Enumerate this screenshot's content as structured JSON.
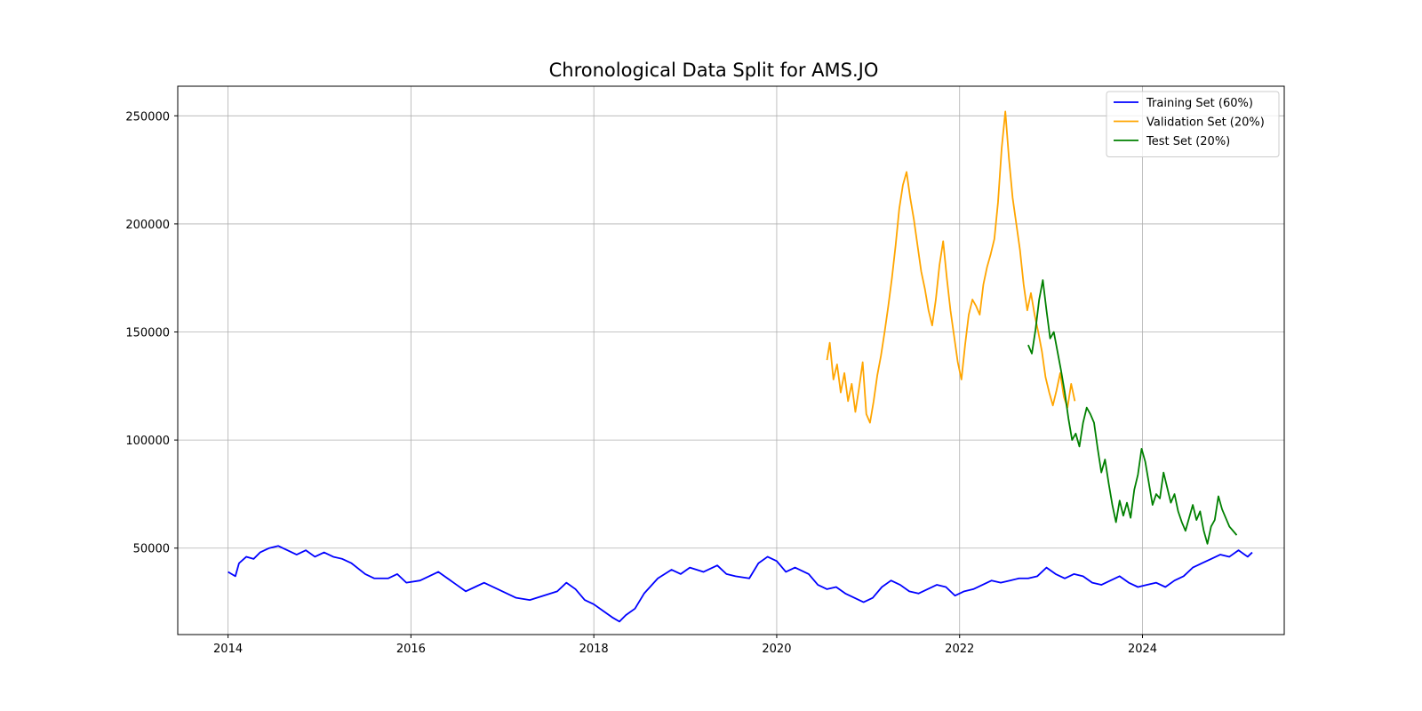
{
  "chart_data": {
    "type": "line",
    "title": "Chronological Data Split for AMS.JO",
    "xlabel": "",
    "ylabel": "",
    "xlim": [
      2013.45,
      2025.55
    ],
    "ylim": [
      10000,
      263700
    ],
    "x_ticks": [
      2014,
      2016,
      2018,
      2020,
      2022,
      2024
    ],
    "x_tick_labels": [
      "2014",
      "2016",
      "2018",
      "2020",
      "2022",
      "2024"
    ],
    "y_ticks": [
      50000,
      100000,
      150000,
      200000,
      250000
    ],
    "y_tick_labels": [
      "50000",
      "100000",
      "150000",
      "200000",
      "250000"
    ],
    "grid": true,
    "legend_position": "upper right",
    "series": [
      {
        "name": "Training Set (60%)",
        "color": "#0000ff",
        "points": [
          [
            2014.0,
            39000
          ],
          [
            2014.08,
            37000
          ],
          [
            2014.12,
            43000
          ],
          [
            2014.2,
            46000
          ],
          [
            2014.28,
            45000
          ],
          [
            2014.35,
            48000
          ],
          [
            2014.45,
            50000
          ],
          [
            2014.55,
            51000
          ],
          [
            2014.65,
            49000
          ],
          [
            2014.75,
            47000
          ],
          [
            2014.85,
            49000
          ],
          [
            2014.95,
            46000
          ],
          [
            2015.05,
            48000
          ],
          [
            2015.15,
            46000
          ],
          [
            2015.25,
            45000
          ],
          [
            2015.35,
            43000
          ],
          [
            2015.5,
            38000
          ],
          [
            2015.6,
            36000
          ],
          [
            2015.75,
            36000
          ],
          [
            2015.85,
            38000
          ],
          [
            2015.95,
            34000
          ],
          [
            2016.1,
            35000
          ],
          [
            2016.2,
            37000
          ],
          [
            2016.3,
            39000
          ],
          [
            2016.4,
            36000
          ],
          [
            2016.5,
            33000
          ],
          [
            2016.6,
            30000
          ],
          [
            2016.7,
            32000
          ],
          [
            2016.8,
            34000
          ],
          [
            2016.95,
            31000
          ],
          [
            2017.05,
            29000
          ],
          [
            2017.15,
            27000
          ],
          [
            2017.3,
            26000
          ],
          [
            2017.45,
            28000
          ],
          [
            2017.6,
            30000
          ],
          [
            2017.7,
            34000
          ],
          [
            2017.8,
            31000
          ],
          [
            2017.9,
            26000
          ],
          [
            2018.0,
            24000
          ],
          [
            2018.1,
            21000
          ],
          [
            2018.2,
            18000
          ],
          [
            2018.28,
            16000
          ],
          [
            2018.35,
            19000
          ],
          [
            2018.45,
            22000
          ],
          [
            2018.55,
            29000
          ],
          [
            2018.7,
            36000
          ],
          [
            2018.85,
            40000
          ],
          [
            2018.95,
            38000
          ],
          [
            2019.05,
            41000
          ],
          [
            2019.2,
            39000
          ],
          [
            2019.35,
            42000
          ],
          [
            2019.45,
            38000
          ],
          [
            2019.55,
            37000
          ],
          [
            2019.7,
            36000
          ],
          [
            2019.8,
            43000
          ],
          [
            2019.9,
            46000
          ],
          [
            2020.0,
            44000
          ],
          [
            2020.1,
            39000
          ],
          [
            2020.2,
            41000
          ],
          [
            2020.35,
            38000
          ],
          [
            2020.45,
            33000
          ],
          [
            2020.55,
            31000
          ],
          [
            2020.65,
            32000
          ],
          [
            2020.75,
            29000
          ],
          [
            2020.85,
            27000
          ],
          [
            2020.95,
            25000
          ],
          [
            2021.05,
            27000
          ],
          [
            2021.15,
            32000
          ],
          [
            2021.25,
            35000
          ],
          [
            2021.35,
            33000
          ],
          [
            2021.45,
            30000
          ],
          [
            2021.55,
            29000
          ],
          [
            2021.65,
            31000
          ],
          [
            2021.75,
            33000
          ],
          [
            2021.85,
            32000
          ],
          [
            2021.95,
            28000
          ],
          [
            2022.05,
            30000
          ],
          [
            2022.15,
            31000
          ],
          [
            2022.25,
            33000
          ],
          [
            2022.35,
            35000
          ],
          [
            2022.45,
            34000
          ],
          [
            2022.55,
            35000
          ],
          [
            2022.65,
            36000
          ],
          [
            2022.75,
            36000
          ],
          [
            2022.85,
            37000
          ],
          [
            2022.95,
            41000
          ],
          [
            2023.05,
            38000
          ],
          [
            2023.15,
            36000
          ],
          [
            2023.25,
            38000
          ],
          [
            2023.35,
            37000
          ],
          [
            2023.45,
            34000
          ],
          [
            2023.55,
            33000
          ],
          [
            2023.65,
            35000
          ],
          [
            2023.75,
            37000
          ],
          [
            2023.85,
            34000
          ],
          [
            2023.95,
            32000
          ],
          [
            2024.05,
            33000
          ],
          [
            2024.15,
            34000
          ],
          [
            2024.25,
            32000
          ],
          [
            2024.35,
            35000
          ],
          [
            2024.45,
            37000
          ],
          [
            2024.55,
            41000
          ],
          [
            2024.65,
            43000
          ],
          [
            2024.75,
            45000
          ],
          [
            2024.85,
            47000
          ],
          [
            2024.95,
            46000
          ],
          [
            2025.05,
            49000
          ],
          [
            2025.15,
            46000
          ],
          [
            2025.2,
            48000
          ]
        ]
      },
      {
        "name": "Validation Set (20%)",
        "color": "#ffa500",
        "points": [
          [
            2020.55,
            137000
          ],
          [
            2020.58,
            145000
          ],
          [
            2020.62,
            128000
          ],
          [
            2020.66,
            135000
          ],
          [
            2020.7,
            122000
          ],
          [
            2020.74,
            131000
          ],
          [
            2020.78,
            118000
          ],
          [
            2020.82,
            126000
          ],
          [
            2020.86,
            113000
          ],
          [
            2020.9,
            124000
          ],
          [
            2020.94,
            136000
          ],
          [
            2020.98,
            112000
          ],
          [
            2021.02,
            108000
          ],
          [
            2021.06,
            118000
          ],
          [
            2021.1,
            130000
          ],
          [
            2021.14,
            139000
          ],
          [
            2021.18,
            150000
          ],
          [
            2021.22,
            162000
          ],
          [
            2021.26,
            175000
          ],
          [
            2021.3,
            190000
          ],
          [
            2021.34,
            207000
          ],
          [
            2021.38,
            218000
          ],
          [
            2021.42,
            224000
          ],
          [
            2021.46,
            212000
          ],
          [
            2021.5,
            202000
          ],
          [
            2021.54,
            190000
          ],
          [
            2021.58,
            178000
          ],
          [
            2021.62,
            170000
          ],
          [
            2021.66,
            160000
          ],
          [
            2021.7,
            153000
          ],
          [
            2021.74,
            165000
          ],
          [
            2021.78,
            181000
          ],
          [
            2021.82,
            192000
          ],
          [
            2021.86,
            175000
          ],
          [
            2021.9,
            160000
          ],
          [
            2021.94,
            148000
          ],
          [
            2021.98,
            136000
          ],
          [
            2022.02,
            128000
          ],
          [
            2022.06,
            144000
          ],
          [
            2022.1,
            158000
          ],
          [
            2022.14,
            165000
          ],
          [
            2022.18,
            162000
          ],
          [
            2022.22,
            158000
          ],
          [
            2022.26,
            172000
          ],
          [
            2022.3,
            180000
          ],
          [
            2022.34,
            186000
          ],
          [
            2022.38,
            193000
          ],
          [
            2022.42,
            210000
          ],
          [
            2022.46,
            235000
          ],
          [
            2022.5,
            252000
          ],
          [
            2022.54,
            230000
          ],
          [
            2022.58,
            212000
          ],
          [
            2022.62,
            200000
          ],
          [
            2022.66,
            188000
          ],
          [
            2022.7,
            172000
          ],
          [
            2022.74,
            160000
          ],
          [
            2022.78,
            168000
          ],
          [
            2022.82,
            158000
          ],
          [
            2022.86,
            150000
          ],
          [
            2022.9,
            141000
          ],
          [
            2022.94,
            129000
          ],
          [
            2022.98,
            122000
          ],
          [
            2023.02,
            116000
          ],
          [
            2023.06,
            123000
          ],
          [
            2023.1,
            131000
          ],
          [
            2023.14,
            120000
          ],
          [
            2023.18,
            115000
          ],
          [
            2023.22,
            126000
          ],
          [
            2023.26,
            118000
          ]
        ]
      },
      {
        "name": "Test Set (20%)",
        "color": "#008000",
        "points": [
          [
            2022.75,
            144000
          ],
          [
            2022.79,
            140000
          ],
          [
            2022.83,
            151000
          ],
          [
            2022.87,
            165000
          ],
          [
            2022.91,
            174000
          ],
          [
            2022.95,
            160000
          ],
          [
            2022.99,
            147000
          ],
          [
            2023.03,
            150000
          ],
          [
            2023.07,
            141000
          ],
          [
            2023.11,
            132000
          ],
          [
            2023.15,
            122000
          ],
          [
            2023.19,
            110000
          ],
          [
            2023.23,
            100000
          ],
          [
            2023.27,
            103000
          ],
          [
            2023.31,
            97000
          ],
          [
            2023.35,
            108000
          ],
          [
            2023.39,
            115000
          ],
          [
            2023.43,
            112000
          ],
          [
            2023.47,
            108000
          ],
          [
            2023.51,
            96000
          ],
          [
            2023.55,
            85000
          ],
          [
            2023.59,
            91000
          ],
          [
            2023.63,
            80000
          ],
          [
            2023.67,
            70000
          ],
          [
            2023.71,
            62000
          ],
          [
            2023.75,
            72000
          ],
          [
            2023.79,
            65000
          ],
          [
            2023.83,
            71000
          ],
          [
            2023.87,
            64000
          ],
          [
            2023.91,
            77000
          ],
          [
            2023.95,
            84000
          ],
          [
            2023.99,
            96000
          ],
          [
            2024.03,
            90000
          ],
          [
            2024.07,
            80000
          ],
          [
            2024.11,
            70000
          ],
          [
            2024.15,
            75000
          ],
          [
            2024.19,
            73000
          ],
          [
            2024.23,
            85000
          ],
          [
            2024.27,
            78000
          ],
          [
            2024.31,
            71000
          ],
          [
            2024.35,
            75000
          ],
          [
            2024.39,
            67000
          ],
          [
            2024.43,
            62000
          ],
          [
            2024.47,
            58000
          ],
          [
            2024.51,
            64000
          ],
          [
            2024.55,
            70000
          ],
          [
            2024.59,
            63000
          ],
          [
            2024.63,
            67000
          ],
          [
            2024.67,
            58000
          ],
          [
            2024.71,
            52000
          ],
          [
            2024.75,
            60000
          ],
          [
            2024.79,
            63000
          ],
          [
            2024.83,
            74000
          ],
          [
            2024.87,
            68000
          ],
          [
            2024.91,
            64000
          ],
          [
            2024.95,
            60000
          ],
          [
            2024.99,
            58000
          ],
          [
            2025.03,
            56000
          ]
        ]
      }
    ]
  }
}
